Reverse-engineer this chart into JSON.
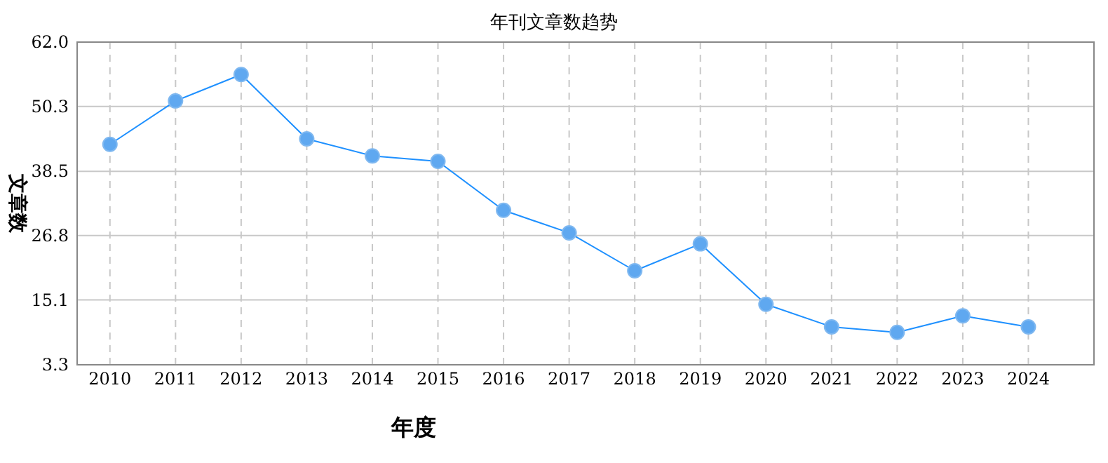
{
  "chart_data": {
    "type": "line",
    "title": "年刊文章数趋势",
    "xlabel": "年度",
    "ylabel": "文章数",
    "categories": [
      "2010",
      "2011",
      "2012",
      "2013",
      "2014",
      "2015",
      "2016",
      "2017",
      "2018",
      "2019",
      "2020",
      "2021",
      "2022",
      "2023",
      "2024"
    ],
    "series": [
      {
        "color": "#1e90ff",
        "values": [
          43.4,
          51.3,
          56.1,
          44.4,
          41.3,
          40.3,
          31.4,
          27.3,
          20.4,
          25.3,
          14.3,
          10.2,
          9.2,
          12.2,
          10.2
        ]
      }
    ],
    "ylim": [
      3.3,
      62.0
    ],
    "yticks": [
      3.3,
      15.1,
      26.8,
      38.5,
      50.3,
      {
        "value": 62.0,
        "label": "62.0"
      }
    ],
    "grid": true,
    "marker": "circle",
    "line_style": "solid"
  }
}
